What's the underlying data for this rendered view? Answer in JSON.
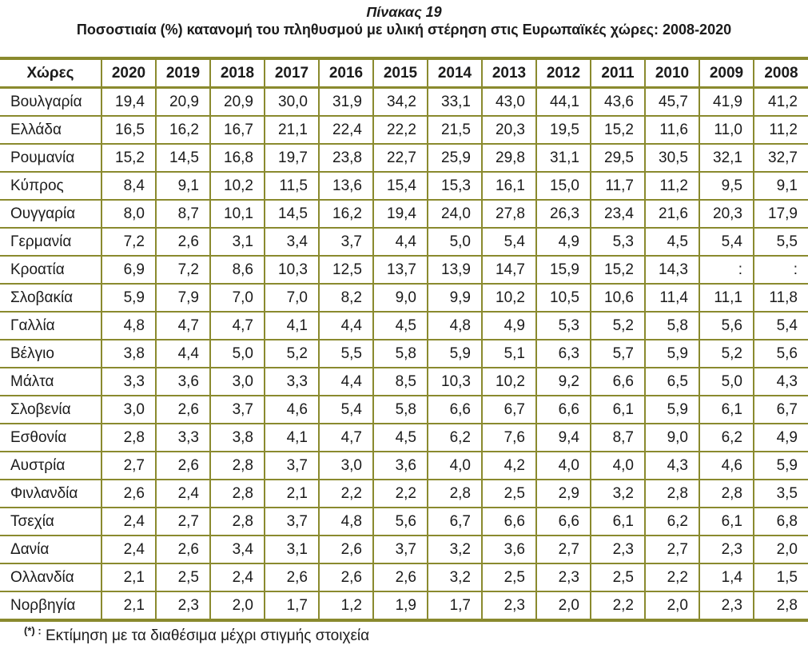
{
  "title": "Πίνακας 19",
  "subtitle": "Ποσοστιαία (%) κατανομή του πληθυσμού με υλική στέρηση στις Ευρωπαϊκές χώρες: 2008-2020",
  "colors": {
    "table_border": "#8a8a2e",
    "text": "#1b1b1b",
    "background": "#ffffff"
  },
  "footnote": {
    "marker": "(*) :",
    "text": "Εκτίμηση με τα διαθέσιμα μέχρι στιγμής στοιχεία"
  },
  "table": {
    "columns": [
      "Χώρες",
      "2020",
      "2019",
      "2018",
      "2017",
      "2016",
      "2015",
      "2014",
      "2013",
      "2012",
      "2011",
      "2010",
      "2009",
      "2008"
    ],
    "rows": [
      {
        "country": "Βουλγαρία",
        "values": [
          "19,4",
          "20,9",
          "20,9",
          "30,0",
          "31,9",
          "34,2",
          "33,1",
          "43,0",
          "44,1",
          "43,6",
          "45,7",
          "41,9",
          "41,2"
        ]
      },
      {
        "country": "Ελλάδα",
        "values": [
          "16,5",
          "16,2",
          "16,7",
          "21,1",
          "22,4",
          "22,2",
          "21,5",
          "20,3",
          "19,5",
          "15,2",
          "11,6",
          "11,0",
          "11,2"
        ]
      },
      {
        "country": "Ρουμανία",
        "values": [
          "15,2",
          "14,5",
          "16,8",
          "19,7",
          "23,8",
          "22,7",
          "25,9",
          "29,8",
          "31,1",
          "29,5",
          "30,5",
          "32,1",
          "32,7"
        ]
      },
      {
        "country": "Κύπρος",
        "values": [
          "8,4",
          "9,1",
          "10,2",
          "11,5",
          "13,6",
          "15,4",
          "15,3",
          "16,1",
          "15,0",
          "11,7",
          "11,2",
          "9,5",
          "9,1"
        ]
      },
      {
        "country": "Ουγγαρία",
        "values": [
          "8,0",
          "8,7",
          "10,1",
          "14,5",
          "16,2",
          "19,4",
          "24,0",
          "27,8",
          "26,3",
          "23,4",
          "21,6",
          "20,3",
          "17,9"
        ]
      },
      {
        "country": "Γερμανία",
        "values": [
          "7,2",
          "2,6",
          "3,1",
          "3,4",
          "3,7",
          "4,4",
          "5,0",
          "5,4",
          "4,9",
          "5,3",
          "4,5",
          "5,4",
          "5,5"
        ]
      },
      {
        "country": "Κροατία",
        "values": [
          "6,9",
          "7,2",
          "8,6",
          "10,3",
          "12,5",
          "13,7",
          "13,9",
          "14,7",
          "15,9",
          "15,2",
          "14,3",
          ":",
          ":"
        ]
      },
      {
        "country": "Σλοβακία",
        "values": [
          "5,9",
          "7,9",
          "7,0",
          "7,0",
          "8,2",
          "9,0",
          "9,9",
          "10,2",
          "10,5",
          "10,6",
          "11,4",
          "11,1",
          "11,8"
        ]
      },
      {
        "country": "Γαλλία",
        "values": [
          "4,8",
          "4,7",
          "4,7",
          "4,1",
          "4,4",
          "4,5",
          "4,8",
          "4,9",
          "5,3",
          "5,2",
          "5,8",
          "5,6",
          "5,4"
        ]
      },
      {
        "country": "Βέλγιο",
        "values": [
          "3,8",
          "4,4",
          "5,0",
          "5,2",
          "5,5",
          "5,8",
          "5,9",
          "5,1",
          "6,3",
          "5,7",
          "5,9",
          "5,2",
          "5,6"
        ]
      },
      {
        "country": "Μάλτα",
        "values": [
          "3,3",
          "3,6",
          "3,0",
          "3,3",
          "4,4",
          "8,5",
          "10,3",
          "10,2",
          "9,2",
          "6,6",
          "6,5",
          "5,0",
          "4,3"
        ]
      },
      {
        "country": "Σλοβενία",
        "values": [
          "3,0",
          "2,6",
          "3,7",
          "4,6",
          "5,4",
          "5,8",
          "6,6",
          "6,7",
          "6,6",
          "6,1",
          "5,9",
          "6,1",
          "6,7"
        ]
      },
      {
        "country": "Εσθονία",
        "values": [
          "2,8",
          "3,3",
          "3,8",
          "4,1",
          "4,7",
          "4,5",
          "6,2",
          "7,6",
          "9,4",
          "8,7",
          "9,0",
          "6,2",
          "4,9"
        ]
      },
      {
        "country": "Αυστρία",
        "values": [
          "2,7",
          "2,6",
          "2,8",
          "3,7",
          "3,0",
          "3,6",
          "4,0",
          "4,2",
          "4,0",
          "4,0",
          "4,3",
          "4,6",
          "5,9"
        ]
      },
      {
        "country": "Φινλανδία",
        "values": [
          "2,6",
          "2,4",
          "2,8",
          "2,1",
          "2,2",
          "2,2",
          "2,8",
          "2,5",
          "2,9",
          "3,2",
          "2,8",
          "2,8",
          "3,5"
        ]
      },
      {
        "country": "Τσεχία",
        "values": [
          "2,4",
          "2,7",
          "2,8",
          "3,7",
          "4,8",
          "5,6",
          "6,7",
          "6,6",
          "6,6",
          "6,1",
          "6,2",
          "6,1",
          "6,8"
        ]
      },
      {
        "country": "Δανία",
        "values": [
          "2,4",
          "2,6",
          "3,4",
          "3,1",
          "2,6",
          "3,7",
          "3,2",
          "3,6",
          "2,7",
          "2,3",
          "2,7",
          "2,3",
          "2,0"
        ]
      },
      {
        "country": "Ολλανδία",
        "values": [
          "2,1",
          "2,5",
          "2,4",
          "2,6",
          "2,6",
          "2,6",
          "3,2",
          "2,5",
          "2,3",
          "2,5",
          "2,2",
          "1,4",
          "1,5"
        ]
      },
      {
        "country": "Νορβηγία",
        "values": [
          "2,1",
          "2,3",
          "2,0",
          "1,7",
          "1,2",
          "1,9",
          "1,7",
          "2,3",
          "2,0",
          "2,2",
          "2,0",
          "2,3",
          "2,8"
        ]
      }
    ]
  }
}
